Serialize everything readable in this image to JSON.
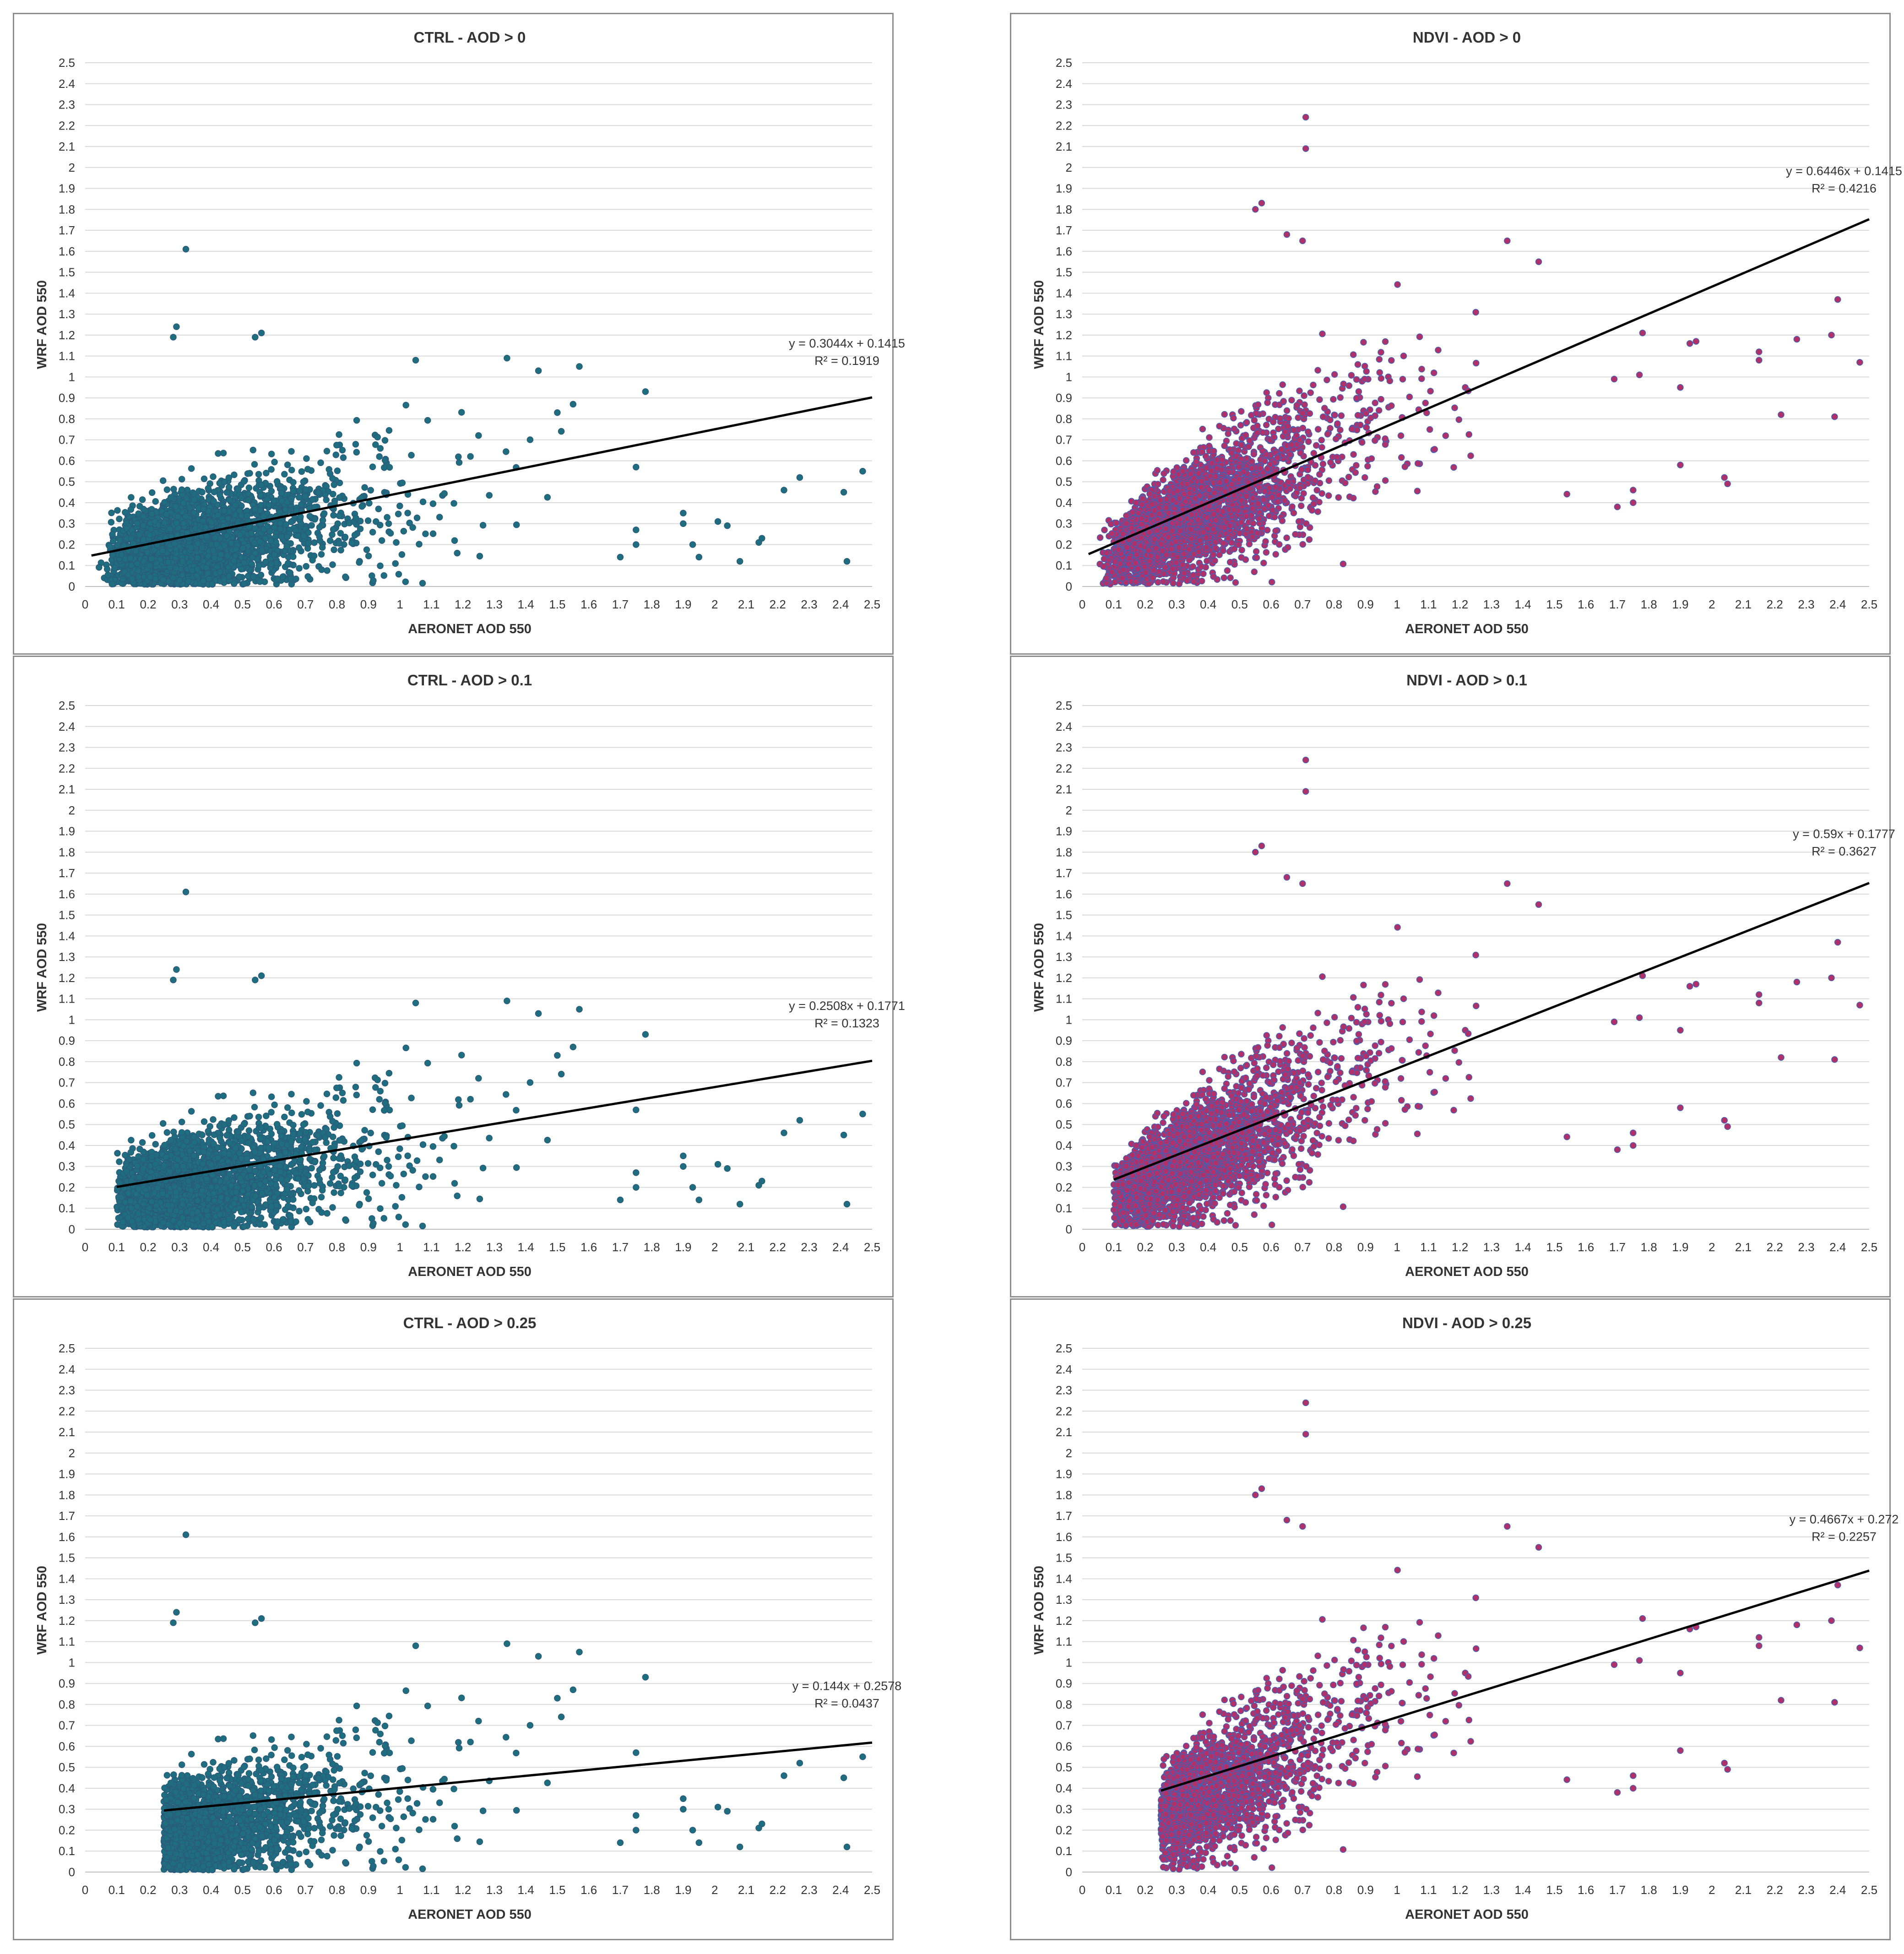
{
  "chart_data": [
    {
      "id": "ctrl-0",
      "type": "scatter",
      "title": "CTRL - AOD > 0",
      "xlabel": "AERONET AOD 550",
      "ylabel": "WRF AOD 550",
      "xlim": [
        0,
        2.5
      ],
      "ylim": [
        0,
        2.5
      ],
      "xticks": [
        "0",
        "0.1",
        "0.2",
        "0.3",
        "0.4",
        "0.5",
        "0.6",
        "0.7",
        "0.8",
        "0.9",
        "1",
        "1.1",
        "1.2",
        "1.3",
        "1.4",
        "1.5",
        "1.6",
        "1.7",
        "1.8",
        "1.9",
        "2",
        "2.1",
        "2.2",
        "2.3",
        "2.4",
        "2.5"
      ],
      "yticks": [
        "0",
        "0.1",
        "0.2",
        "0.3",
        "0.4",
        "0.5",
        "0.6",
        "0.7",
        "0.8",
        "0.9",
        "1",
        "1.1",
        "1.2",
        "1.3",
        "1.4",
        "1.5",
        "1.6",
        "1.7",
        "1.8",
        "1.9",
        "2",
        "2.1",
        "2.2",
        "2.3",
        "2.4",
        "2.5"
      ],
      "marker_color": "#1f6e80",
      "marker_edge": "#2a5a7a",
      "x_min": 0.02,
      "trend": {
        "slope": 0.3044,
        "intercept": 0.1415,
        "x_start": 0.02,
        "x_end": 2.5
      },
      "equation": "y = 0.3044x + 0.1415",
      "r2": "R² = 0.1919",
      "outliers": [
        [
          0.32,
          1.61
        ],
        [
          0.29,
          1.24
        ],
        [
          0.56,
          1.21
        ],
        [
          0.54,
          1.19
        ],
        [
          0.28,
          1.19
        ],
        [
          2.47,
          0.55
        ],
        [
          2.27,
          0.52
        ],
        [
          2.41,
          0.45
        ],
        [
          2.22,
          0.46
        ],
        [
          2.42,
          0.12
        ],
        [
          2.08,
          0.12
        ],
        [
          2.04,
          0.29
        ],
        [
          2.01,
          0.31
        ],
        [
          2.15,
          0.23
        ],
        [
          2.14,
          0.21
        ],
        [
          1.9,
          0.35
        ],
        [
          1.9,
          0.3
        ],
        [
          1.93,
          0.2
        ],
        [
          1.95,
          0.14
        ],
        [
          1.78,
          0.93
        ],
        [
          1.75,
          0.57
        ],
        [
          1.7,
          0.14
        ],
        [
          1.75,
          0.2
        ],
        [
          1.75,
          0.27
        ],
        [
          1.34,
          1.09
        ],
        [
          1.57,
          1.05
        ],
        [
          1.44,
          1.03
        ],
        [
          1.05,
          1.08
        ],
        [
          1.55,
          0.87
        ],
        [
          1.5,
          0.83
        ]
      ]
    },
    {
      "id": "ndvi-0",
      "type": "scatter",
      "title": "NDVI - AOD > 0",
      "xlabel": "AERONET AOD 550",
      "ylabel": "WRF AOD 550",
      "xlim": [
        0,
        2.5
      ],
      "ylim": [
        0,
        2.5
      ],
      "xticks": [
        "0",
        "0.1",
        "0.2",
        "0.3",
        "0.4",
        "0.5",
        "0.6",
        "0.7",
        "0.8",
        "0.9",
        "1",
        "1.1",
        "1.2",
        "1.3",
        "1.4",
        "1.5",
        "1.6",
        "1.7",
        "1.8",
        "1.9",
        "2",
        "2.1",
        "2.2",
        "2.3",
        "2.4",
        "2.5"
      ],
      "yticks": [
        "0",
        "0.1",
        "0.2",
        "0.3",
        "0.4",
        "0.5",
        "0.6",
        "0.7",
        "0.8",
        "0.9",
        "1",
        "1.1",
        "1.2",
        "1.3",
        "1.4",
        "1.5",
        "1.6",
        "1.7",
        "1.8",
        "1.9",
        "2",
        "2.1",
        "2.2",
        "2.3",
        "2.4",
        "2.5"
      ],
      "marker_color": "#b0306a",
      "marker_edge": "#4a5fb0",
      "x_min": 0.02,
      "trend": {
        "slope": 0.6446,
        "intercept": 0.1415,
        "x_start": 0.02,
        "x_end": 2.5
      },
      "equation": "y = 0.6446x + 0.1415",
      "r2": "R² = 0.4216",
      "outliers": [
        [
          0.71,
          2.24
        ],
        [
          0.71,
          2.09
        ],
        [
          0.57,
          1.83
        ],
        [
          0.55,
          1.8
        ],
        [
          0.65,
          1.68
        ],
        [
          1.35,
          1.65
        ],
        [
          0.7,
          1.65
        ],
        [
          1.45,
          1.55
        ],
        [
          2.4,
          1.37
        ],
        [
          2.47,
          1.07
        ],
        [
          2.38,
          1.2
        ],
        [
          2.27,
          1.18
        ],
        [
          2.15,
          1.12
        ],
        [
          2.15,
          1.08
        ],
        [
          2.22,
          0.82
        ],
        [
          2.39,
          0.81
        ],
        [
          1.95,
          1.17
        ],
        [
          1.93,
          1.16
        ],
        [
          1.9,
          0.95
        ],
        [
          1.9,
          0.58
        ],
        [
          2.04,
          0.52
        ],
        [
          2.05,
          0.49
        ],
        [
          1.78,
          1.21
        ],
        [
          1.77,
          1.01
        ],
        [
          1.69,
          0.99
        ],
        [
          1.7,
          0.38
        ],
        [
          1.75,
          0.4
        ],
        [
          1.75,
          0.46
        ]
      ]
    },
    {
      "id": "ctrl-01",
      "type": "scatter",
      "title": "CTRL - AOD > 0.1",
      "xlabel": "AERONET AOD 550",
      "ylabel": "WRF AOD 550",
      "xlim": [
        0,
        2.5
      ],
      "ylim": [
        0,
        2.5
      ],
      "xticks": [
        "0",
        "0.1",
        "0.2",
        "0.3",
        "0.4",
        "0.5",
        "0.6",
        "0.7",
        "0.8",
        "0.9",
        "1",
        "1.1",
        "1.2",
        "1.3",
        "1.4",
        "1.5",
        "1.6",
        "1.7",
        "1.8",
        "1.9",
        "2",
        "2.1",
        "2.2",
        "2.3",
        "2.4",
        "2.5"
      ],
      "yticks": [
        "0",
        "0.1",
        "0.2",
        "0.3",
        "0.4",
        "0.5",
        "0.6",
        "0.7",
        "0.8",
        "0.9",
        "1",
        "1.1",
        "1.2",
        "1.3",
        "1.4",
        "1.5",
        "1.6",
        "1.7",
        "1.8",
        "1.9",
        "2",
        "2.1",
        "2.2",
        "2.3",
        "2.4",
        "2.5"
      ],
      "marker_color": "#1f6e80",
      "marker_edge": "#2a5a7a",
      "x_min": 0.1,
      "trend": {
        "slope": 0.2508,
        "intercept": 0.1771,
        "x_start": 0.1,
        "x_end": 2.5
      },
      "equation": "y = 0.2508x + 0.1771",
      "r2": "R² = 0.1323",
      "outliers": [
        [
          0.32,
          1.61
        ],
        [
          0.29,
          1.24
        ],
        [
          0.56,
          1.21
        ],
        [
          0.54,
          1.19
        ],
        [
          0.28,
          1.19
        ],
        [
          2.47,
          0.55
        ],
        [
          2.27,
          0.52
        ],
        [
          2.41,
          0.45
        ],
        [
          2.22,
          0.46
        ],
        [
          2.42,
          0.12
        ],
        [
          2.08,
          0.12
        ],
        [
          2.04,
          0.29
        ],
        [
          2.01,
          0.31
        ],
        [
          2.15,
          0.23
        ],
        [
          2.14,
          0.21
        ],
        [
          1.9,
          0.35
        ],
        [
          1.9,
          0.3
        ],
        [
          1.93,
          0.2
        ],
        [
          1.95,
          0.14
        ],
        [
          1.78,
          0.93
        ],
        [
          1.75,
          0.57
        ],
        [
          1.7,
          0.14
        ],
        [
          1.75,
          0.2
        ],
        [
          1.75,
          0.27
        ],
        [
          1.34,
          1.09
        ],
        [
          1.57,
          1.05
        ],
        [
          1.44,
          1.03
        ],
        [
          1.05,
          1.08
        ],
        [
          1.55,
          0.87
        ],
        [
          1.5,
          0.83
        ]
      ]
    },
    {
      "id": "ndvi-01",
      "type": "scatter",
      "title": "NDVI - AOD > 0.1",
      "xlabel": "AERONET AOD 550",
      "ylabel": "WRF AOD 550",
      "xlim": [
        0,
        2.5
      ],
      "ylim": [
        0,
        2.5
      ],
      "xticks": [
        "0",
        "0.1",
        "0.2",
        "0.3",
        "0.4",
        "0.5",
        "0.6",
        "0.7",
        "0.8",
        "0.9",
        "1",
        "1.1",
        "1.2",
        "1.3",
        "1.4",
        "1.5",
        "1.6",
        "1.7",
        "1.8",
        "1.9",
        "2",
        "2.1",
        "2.2",
        "2.3",
        "2.4",
        "2.5"
      ],
      "yticks": [
        "0",
        "0.1",
        "0.2",
        "0.3",
        "0.4",
        "0.5",
        "0.6",
        "0.7",
        "0.8",
        "0.9",
        "1",
        "1.1",
        "1.2",
        "1.3",
        "1.4",
        "1.5",
        "1.6",
        "1.7",
        "1.8",
        "1.9",
        "2",
        "2.1",
        "2.2",
        "2.3",
        "2.4",
        "2.5"
      ],
      "marker_color": "#b0306a",
      "marker_edge": "#4a5fb0",
      "x_min": 0.1,
      "trend": {
        "slope": 0.59,
        "intercept": 0.1777,
        "x_start": 0.1,
        "x_end": 2.5
      },
      "equation": "y = 0.59x + 0.1777",
      "r2": "R² = 0.3627",
      "outliers": [
        [
          0.71,
          2.24
        ],
        [
          0.71,
          2.09
        ],
        [
          0.57,
          1.83
        ],
        [
          0.55,
          1.8
        ],
        [
          0.65,
          1.68
        ],
        [
          1.35,
          1.65
        ],
        [
          0.7,
          1.65
        ],
        [
          1.45,
          1.55
        ],
        [
          2.4,
          1.37
        ],
        [
          2.47,
          1.07
        ],
        [
          2.38,
          1.2
        ],
        [
          2.27,
          1.18
        ],
        [
          2.15,
          1.12
        ],
        [
          2.15,
          1.08
        ],
        [
          2.22,
          0.82
        ],
        [
          2.39,
          0.81
        ],
        [
          1.95,
          1.17
        ],
        [
          1.93,
          1.16
        ],
        [
          1.9,
          0.95
        ],
        [
          1.9,
          0.58
        ],
        [
          2.04,
          0.52
        ],
        [
          2.05,
          0.49
        ],
        [
          1.78,
          1.21
        ],
        [
          1.77,
          1.01
        ],
        [
          1.69,
          0.99
        ],
        [
          1.7,
          0.38
        ],
        [
          1.75,
          0.4
        ],
        [
          1.75,
          0.46
        ]
      ]
    },
    {
      "id": "ctrl-025",
      "type": "scatter",
      "title": "CTRL - AOD > 0.25",
      "xlabel": "AERONET AOD 550",
      "ylabel": "WRF AOD 550",
      "xlim": [
        0,
        2.5
      ],
      "ylim": [
        0,
        2.5
      ],
      "xticks": [
        "0",
        "0.1",
        "0.2",
        "0.3",
        "0.4",
        "0.5",
        "0.6",
        "0.7",
        "0.8",
        "0.9",
        "1",
        "1.1",
        "1.2",
        "1.3",
        "1.4",
        "1.5",
        "1.6",
        "1.7",
        "1.8",
        "1.9",
        "2",
        "2.1",
        "2.2",
        "2.3",
        "2.4",
        "2.5"
      ],
      "yticks": [
        "0",
        "0.1",
        "0.2",
        "0.3",
        "0.4",
        "0.5",
        "0.6",
        "0.7",
        "0.8",
        "0.9",
        "1",
        "1.1",
        "1.2",
        "1.3",
        "1.4",
        "1.5",
        "1.6",
        "1.7",
        "1.8",
        "1.9",
        "2",
        "2.1",
        "2.2",
        "2.3",
        "2.4",
        "2.5"
      ],
      "marker_color": "#1f6e80",
      "marker_edge": "#2a5a7a",
      "x_min": 0.25,
      "trend": {
        "slope": 0.144,
        "intercept": 0.2578,
        "x_start": 0.25,
        "x_end": 2.5
      },
      "equation": "y = 0.144x + 0.2578",
      "r2": "R² = 0.0437",
      "outliers": [
        [
          0.32,
          1.61
        ],
        [
          0.29,
          1.24
        ],
        [
          0.56,
          1.21
        ],
        [
          0.54,
          1.19
        ],
        [
          0.28,
          1.19
        ],
        [
          2.47,
          0.55
        ],
        [
          2.27,
          0.52
        ],
        [
          2.41,
          0.45
        ],
        [
          2.22,
          0.46
        ],
        [
          2.42,
          0.12
        ],
        [
          2.08,
          0.12
        ],
        [
          2.04,
          0.29
        ],
        [
          2.01,
          0.31
        ],
        [
          2.15,
          0.23
        ],
        [
          2.14,
          0.21
        ],
        [
          1.9,
          0.35
        ],
        [
          1.9,
          0.3
        ],
        [
          1.93,
          0.2
        ],
        [
          1.95,
          0.14
        ],
        [
          1.78,
          0.93
        ],
        [
          1.75,
          0.57
        ],
        [
          1.7,
          0.14
        ],
        [
          1.75,
          0.2
        ],
        [
          1.75,
          0.27
        ],
        [
          1.34,
          1.09
        ],
        [
          1.57,
          1.05
        ],
        [
          1.44,
          1.03
        ],
        [
          1.05,
          1.08
        ],
        [
          1.55,
          0.87
        ],
        [
          1.5,
          0.83
        ]
      ]
    },
    {
      "id": "ndvi-025",
      "type": "scatter",
      "title": "NDVI - AOD > 0.25",
      "xlabel": "AERONET AOD 550",
      "ylabel": "WRF AOD 550",
      "xlim": [
        0,
        2.5
      ],
      "ylim": [
        0,
        2.5
      ],
      "xticks": [
        "0",
        "0.1",
        "0.2",
        "0.3",
        "0.4",
        "0.5",
        "0.6",
        "0.7",
        "0.8",
        "0.9",
        "1",
        "1.1",
        "1.2",
        "1.3",
        "1.4",
        "1.5",
        "1.6",
        "1.7",
        "1.8",
        "1.9",
        "2",
        "2.1",
        "2.2",
        "2.3",
        "2.4",
        "2.5"
      ],
      "yticks": [
        "0",
        "0.1",
        "0.2",
        "0.3",
        "0.4",
        "0.5",
        "0.6",
        "0.7",
        "0.8",
        "0.9",
        "1",
        "1.1",
        "1.2",
        "1.3",
        "1.4",
        "1.5",
        "1.6",
        "1.7",
        "1.8",
        "1.9",
        "2",
        "2.1",
        "2.2",
        "2.3",
        "2.4",
        "2.5"
      ],
      "marker_color": "#b0306a",
      "marker_edge": "#4a5fb0",
      "x_min": 0.25,
      "trend": {
        "slope": 0.4667,
        "intercept": 0.272,
        "x_start": 0.25,
        "x_end": 2.5
      },
      "equation": "y = 0.4667x + 0.272",
      "r2": "R² = 0.2257",
      "outliers": [
        [
          0.71,
          2.24
        ],
        [
          0.71,
          2.09
        ],
        [
          0.57,
          1.83
        ],
        [
          0.55,
          1.8
        ],
        [
          0.65,
          1.68
        ],
        [
          1.35,
          1.65
        ],
        [
          0.7,
          1.65
        ],
        [
          1.45,
          1.55
        ],
        [
          2.4,
          1.37
        ],
        [
          2.47,
          1.07
        ],
        [
          2.38,
          1.2
        ],
        [
          2.27,
          1.18
        ],
        [
          2.15,
          1.12
        ],
        [
          2.15,
          1.08
        ],
        [
          2.22,
          0.82
        ],
        [
          2.39,
          0.81
        ],
        [
          1.95,
          1.17
        ],
        [
          1.93,
          1.16
        ],
        [
          1.9,
          0.95
        ],
        [
          1.9,
          0.58
        ],
        [
          2.04,
          0.52
        ],
        [
          2.05,
          0.49
        ],
        [
          1.78,
          1.21
        ],
        [
          1.77,
          1.01
        ],
        [
          1.69,
          0.99
        ],
        [
          1.7,
          0.38
        ],
        [
          1.75,
          0.4
        ],
        [
          1.75,
          0.46
        ]
      ]
    }
  ]
}
